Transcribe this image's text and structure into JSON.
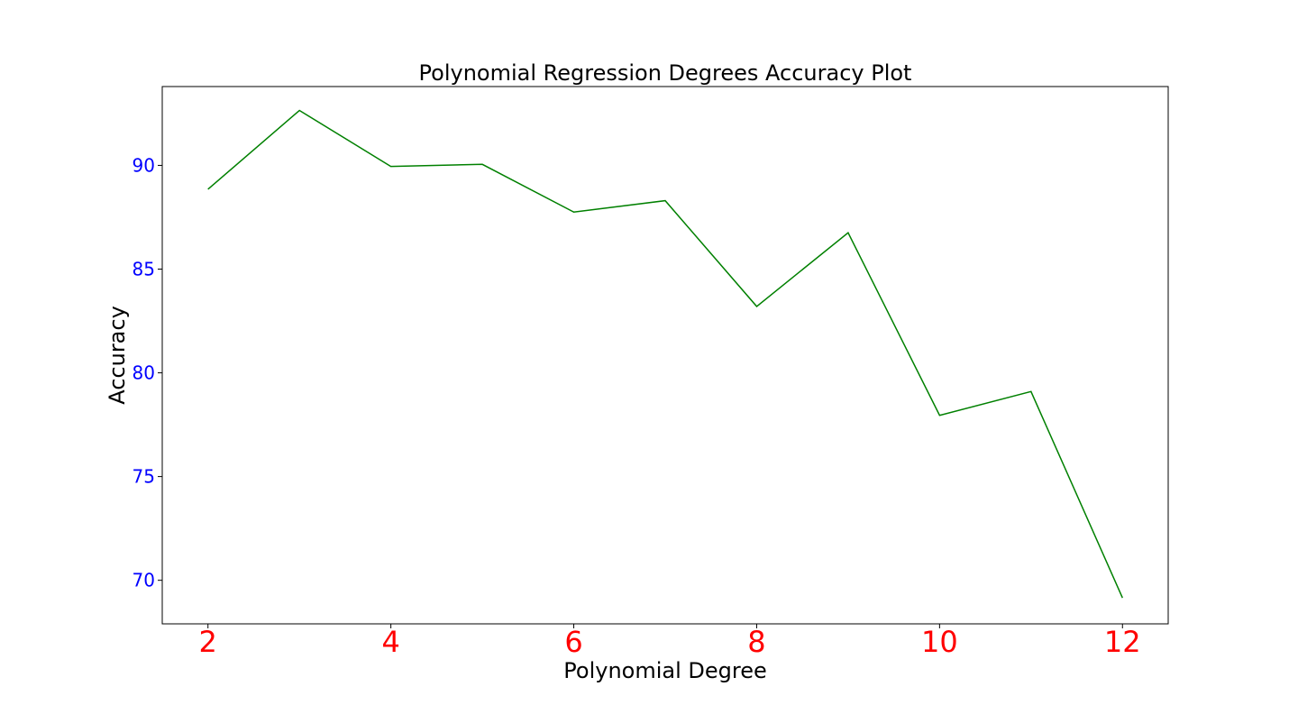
{
  "chart_data": {
    "type": "line",
    "title": "Polynomial Regression Degrees Accuracy Plot",
    "xlabel": "Polynomial Degree",
    "ylabel": "Accuracy",
    "xlim": [
      1.5,
      12.5
    ],
    "ylim": [
      67.9,
      93.8
    ],
    "xticks": [
      2,
      4,
      6,
      8,
      10,
      12
    ],
    "xtick_labels": [
      "2",
      "4",
      "6",
      "8",
      "10",
      "12"
    ],
    "yticks": [
      70,
      75,
      80,
      85,
      90
    ],
    "ytick_labels": [
      "70",
      "75",
      "80",
      "85",
      "90"
    ],
    "grid": false,
    "series": [
      {
        "x": [
          2,
          3,
          4,
          5,
          6,
          7,
          8,
          9,
          10,
          11,
          12
        ],
        "y": [
          88.85,
          92.65,
          89.95,
          90.05,
          87.75,
          88.3,
          83.2,
          86.75,
          77.95,
          79.1,
          69.15
        ],
        "color": "#008000"
      }
    ],
    "colors": {
      "xtick": "#ff0000",
      "ytick": "#0000ff",
      "frame": "#000000"
    }
  }
}
